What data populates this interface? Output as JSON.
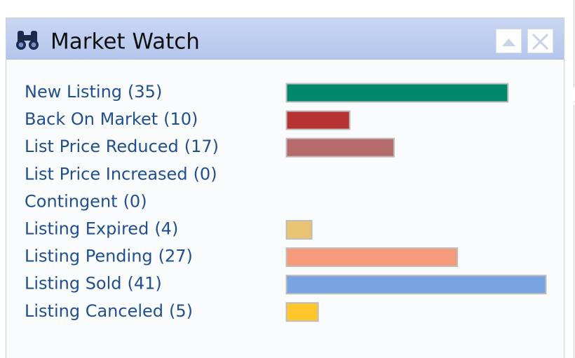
{
  "chart_data": {
    "type": "bar",
    "title": "Market Watch",
    "categories": [
      "New Listing",
      "Back On Market",
      "List Price Reduced",
      "List Price Increased",
      "Contingent",
      "Listing Expired",
      "Listing Pending",
      "Listing Sold",
      "Listing Canceled"
    ],
    "values": [
      35,
      10,
      17,
      0,
      0,
      4,
      27,
      41,
      5
    ],
    "value_labels": [
      "(35)",
      "(10)",
      "(17)",
      "(0)",
      "(0)",
      "(4)",
      "(27)",
      "(41)",
      "(5)"
    ],
    "colors": [
      "#00876c",
      "#b53333",
      "#b56b6b",
      null,
      null,
      "#e8c474",
      "#f59b7c",
      "#78a4e2",
      "#ffc72d"
    ]
  }
}
